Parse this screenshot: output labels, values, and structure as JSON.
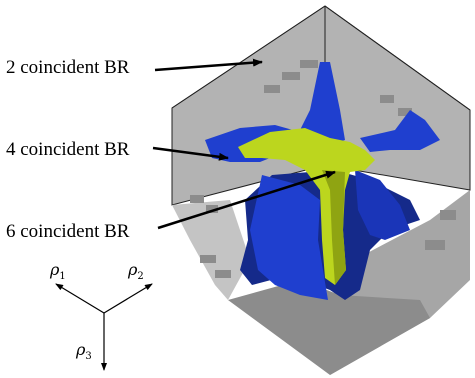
{
  "annotations": [
    {
      "id": "br2",
      "label": "2 coincident BR"
    },
    {
      "id": "br4",
      "label": "4 coincident BR"
    },
    {
      "id": "br6",
      "label": "6 coincident BR"
    }
  ],
  "axes": {
    "rho1": {
      "symbol": "ρ",
      "index": "1"
    },
    "rho2": {
      "symbol": "ρ",
      "index": "2"
    },
    "rho3": {
      "symbol": "ρ",
      "index": "3"
    }
  },
  "colors": {
    "cube_face": "#b3b3b3",
    "cube_face_dark": "#8c8c8c",
    "cube_face_light": "#cfcfcf",
    "blue_region": "#1f3fcf",
    "blue_region_dark": "#152a8a",
    "yellow_region": "#bcd61e",
    "yellow_region_dark": "#8fa412",
    "edge": "#222222"
  }
}
